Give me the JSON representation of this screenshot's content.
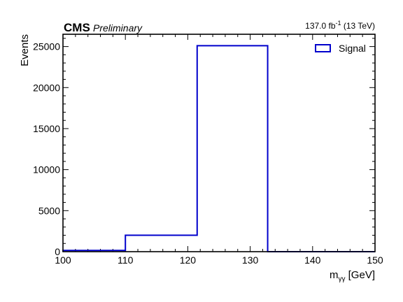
{
  "chart_data": {
    "type": "histogram",
    "experiment": "CMS",
    "status": "Preliminary",
    "lumi_text": "137.0 fb",
    "lumi_exp": "-1",
    "energy_text": " (13 TeV)",
    "xlabel": "m",
    "xlabel_sub": "γγ",
    "xlabel_unit": " [GeV]",
    "ylabel": "Events",
    "xlim": [
      100,
      150
    ],
    "ylim": [
      0,
      26500
    ],
    "x_ticks": [
      100,
      110,
      120,
      130,
      140,
      150
    ],
    "y_ticks": [
      0,
      5000,
      10000,
      15000,
      20000,
      25000
    ],
    "legend_position": "top-right",
    "series": [
      {
        "name": "Signal",
        "color": "#0000cc",
        "bin_edges": [
          100,
          110,
          121.5,
          132.8,
          150
        ],
        "values": [
          150,
          2000,
          25100,
          0
        ]
      }
    ]
  }
}
